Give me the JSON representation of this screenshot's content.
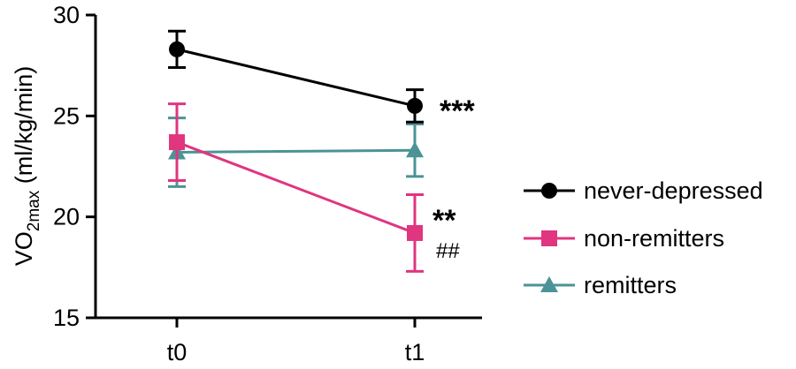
{
  "chart_data": {
    "type": "line",
    "x": [
      "t0",
      "t1"
    ],
    "ylabel": {
      "main": "VO",
      "sub": "2max",
      "unit": " (ml/kg/min)"
    },
    "ylim": [
      15,
      30
    ],
    "yticks": [
      "15",
      "20",
      "25",
      "30"
    ],
    "grid": false,
    "legend_position": "right",
    "series": [
      {
        "name": "never-depressed",
        "marker": "circle",
        "color": "#000000",
        "values": [
          28.3,
          25.5
        ],
        "errors": [
          0.9,
          0.8
        ]
      },
      {
        "name": "non-remitters",
        "marker": "square",
        "color": "#e0357f",
        "values": [
          23.7,
          19.2
        ],
        "errors": [
          1.9,
          1.9
        ]
      },
      {
        "name": "remitters",
        "marker": "triangle",
        "color": "#4b9396",
        "values": [
          23.2,
          23.3
        ],
        "errors": [
          1.7,
          1.3
        ]
      }
    ],
    "annotations": [
      {
        "text": "***",
        "series": "never-depressed",
        "x": "t1"
      },
      {
        "text": "**",
        "series": "non-remitters",
        "x": "t1"
      },
      {
        "text": "##",
        "series": "non-remitters",
        "x": "t1"
      }
    ]
  }
}
